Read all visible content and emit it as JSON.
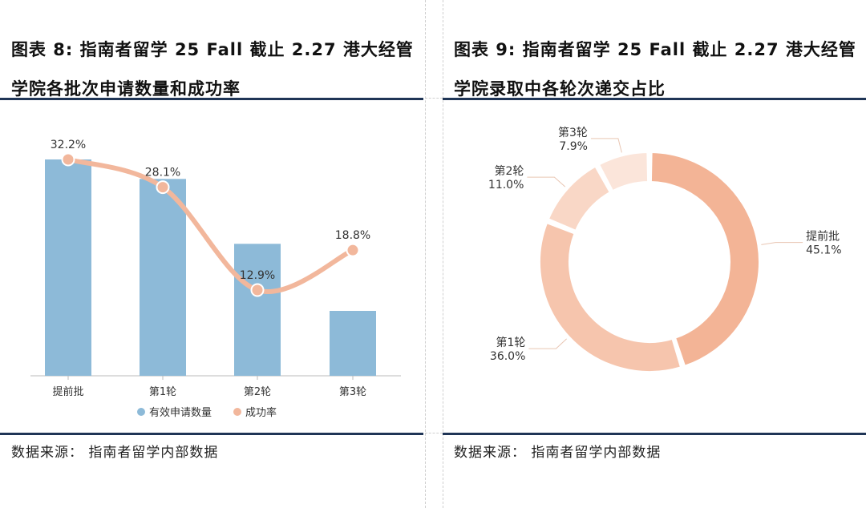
{
  "left": {
    "title_line1": "图表 8: 指南者留学 25 Fall 截止 2.27 港大经管",
    "title_line2": "学院各批次申请数量和成功率",
    "source": "数据来源： 指南者留学内部数据"
  },
  "right": {
    "title_line1": "图表 9: 指南者留学 25 Fall 截止 2.27 港大经管",
    "title_line2": "学院录取中各轮次递交占比",
    "source": "数据来源： 指南者留学内部数据"
  },
  "chart_data": [
    {
      "type": "bar",
      "categories": [
        "提前批",
        "第1轮",
        "第2轮",
        "第3轮"
      ],
      "series": [
        {
          "name": "有效申请数量",
          "kind": "bar",
          "values": [
            100,
            91,
            61,
            30
          ],
          "color": "#8dbad8"
        },
        {
          "name": "成功率",
          "kind": "line",
          "values": [
            32.2,
            28.1,
            12.9,
            18.8
          ],
          "labels": [
            "32.2%",
            "28.1%",
            "12.9%",
            "18.8%"
          ],
          "color": "#f2b79c"
        }
      ],
      "legend": "bottom"
    },
    {
      "type": "pie",
      "donut": true,
      "slices": [
        {
          "label": "提前批",
          "value": 45.1,
          "text": "45.1%",
          "color": "#f3b496"
        },
        {
          "label": "第1轮",
          "value": 36.0,
          "text": "36.0%",
          "color": "#f6c5ad"
        },
        {
          "label": "第2轮",
          "value": 11.0,
          "text": "11.0%",
          "color": "#f9d7c6"
        },
        {
          "label": "第3轮",
          "value": 7.9,
          "text": "7.9%",
          "color": "#fbe5da"
        }
      ]
    }
  ]
}
